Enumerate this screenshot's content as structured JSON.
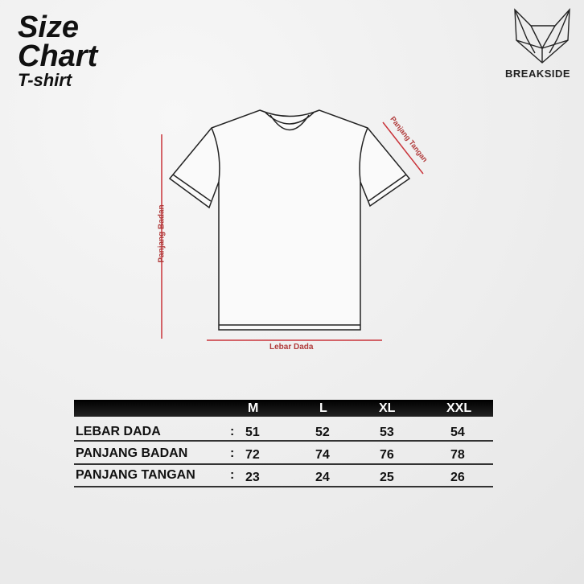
{
  "title": {
    "line1": "Size",
    "line2": "Chart",
    "line3": "T-shirt"
  },
  "brand": {
    "name": "BREAKSIDE",
    "icon": "cat-head-geometric-logo"
  },
  "diagram": {
    "badan_label": "Panjang Badan",
    "dada_label": "Lebar Dada",
    "tangan_label": "Panjang Tangan",
    "accent_color": "#c9343a"
  },
  "table": {
    "headers": [
      "M",
      "L",
      "XL",
      "XXL"
    ],
    "rows": [
      {
        "label": "LEBAR DADA",
        "sep": ":",
        "values": [
          "51",
          "52",
          "53",
          "54"
        ]
      },
      {
        "label": "PANJANG BADAN",
        "sep": ":",
        "values": [
          "72",
          "74",
          "76",
          "78"
        ]
      },
      {
        "label": "PANJANG TANGAN",
        "sep": ":",
        "values": [
          "23",
          "24",
          "25",
          "26"
        ]
      }
    ]
  }
}
